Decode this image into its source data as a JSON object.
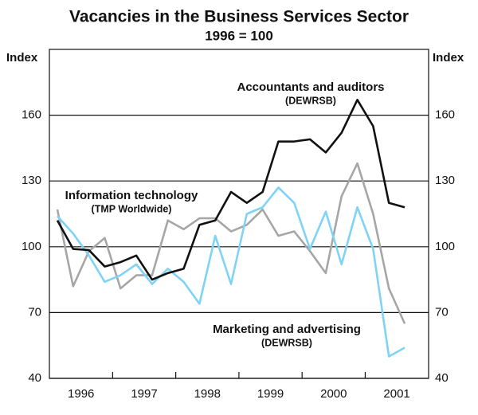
{
  "chart_data": {
    "type": "line",
    "title": "Vacancies in the Business Services Sector",
    "subtitle": "1996 = 100",
    "ylabel": "Index",
    "y2label": "Index",
    "categories": [
      null,
      "1996",
      null,
      null,
      null,
      "1997",
      null,
      null,
      null,
      "1998",
      null,
      null,
      null,
      "1999",
      null,
      null,
      null,
      "2000",
      null,
      null,
      null,
      "2001",
      null
    ],
    "series": [
      {
        "name": "Accountants and auditors",
        "source": "(DEWRSB)",
        "color": "#111111",
        "values": [
          112,
          99,
          98.5,
          91,
          93,
          96,
          85,
          88,
          90,
          110,
          112,
          125,
          120,
          125,
          148,
          148,
          149,
          143,
          152,
          167,
          155,
          120,
          118
        ]
      },
      {
        "name": "Marketing and advertising",
        "source": "(DEWRSB)",
        "color": "#a6a6a6",
        "values": [
          117,
          82,
          98,
          104,
          81,
          87,
          87,
          112,
          108,
          113,
          113,
          107,
          110,
          117,
          105,
          107,
          98,
          88,
          123,
          138,
          115,
          81,
          65
        ]
      },
      {
        "name": "Information technology",
        "source": "(TMP Worldwide)",
        "color": "#7fd3f7",
        "values": [
          114,
          106,
          96,
          84,
          87,
          92,
          83,
          90,
          84,
          74,
          105,
          83,
          115,
          118,
          127,
          120,
          99,
          116,
          92,
          118,
          99,
          50,
          54
        ]
      }
    ],
    "ylim": [
      40,
      190
    ],
    "yticks": [
      40,
      70,
      100,
      130,
      160
    ],
    "y2lim": [
      40,
      190
    ],
    "y2ticks": [
      40,
      70,
      100,
      130,
      160
    ],
    "grid": true
  }
}
